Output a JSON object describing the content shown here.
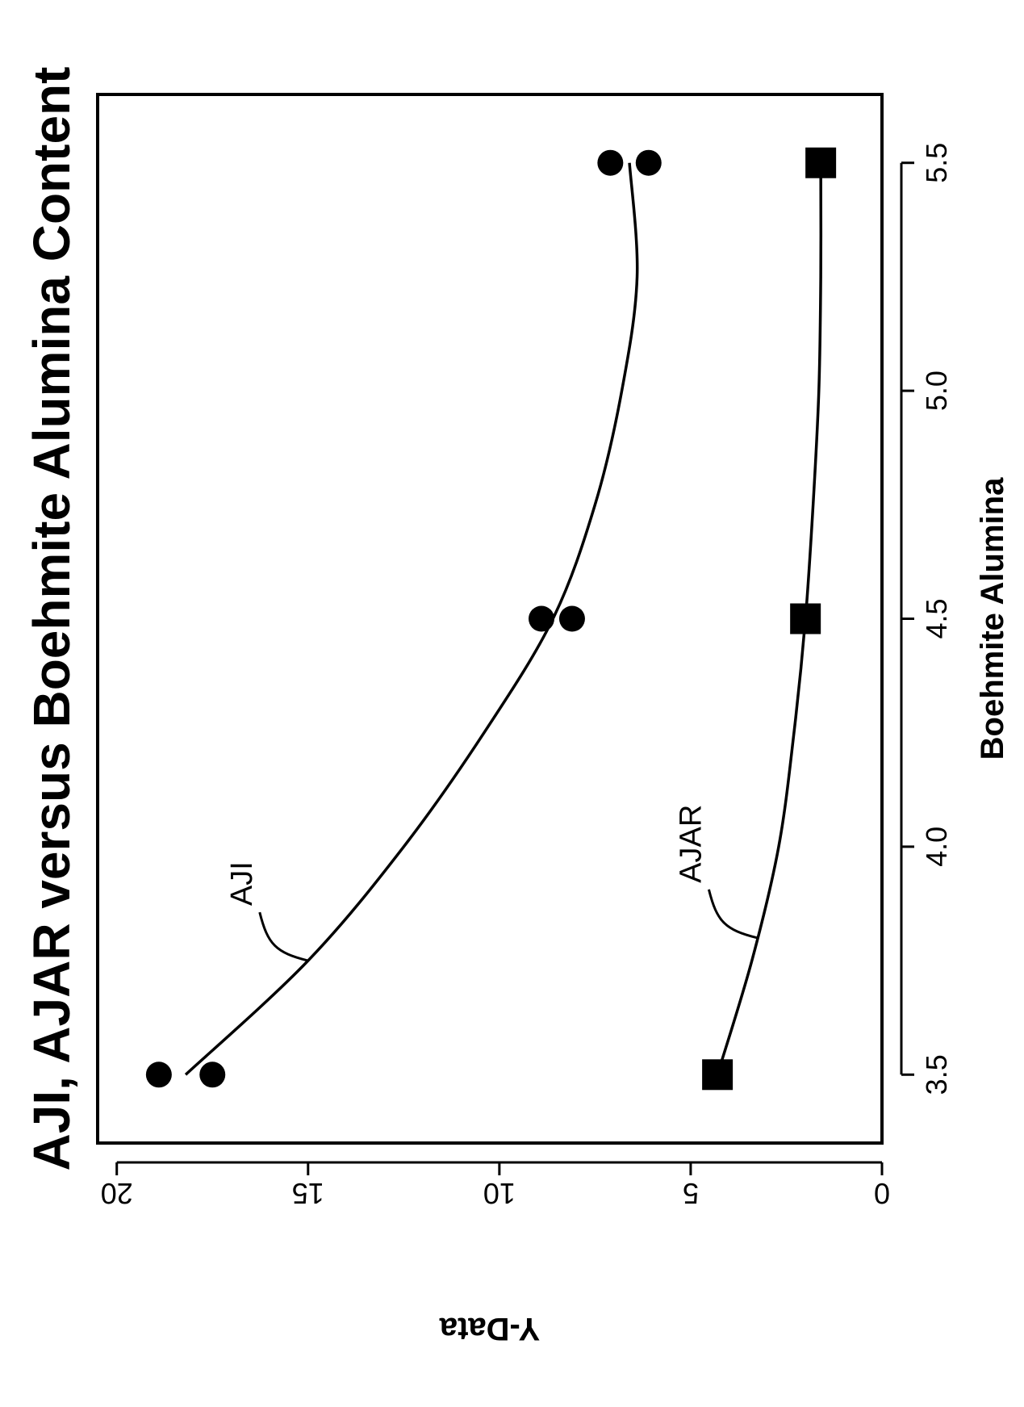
{
  "chart_data": {
    "type": "scatter",
    "title": "AJI, AJAR versus Boehmite Alumina Content",
    "xlabel": "Boehmite Alumina",
    "ylabel": "Y-Data",
    "xlim": [
      3.35,
      5.65
    ],
    "ylim": [
      0,
      20.5
    ],
    "x_ticks": [
      3.5,
      4.0,
      4.5,
      5.0,
      5.5
    ],
    "x_tick_labels": [
      "3.5",
      "4.0",
      "4.5",
      "5.0",
      "5.5"
    ],
    "y_ticks": [
      0,
      5,
      10,
      15,
      20
    ],
    "y_tick_labels": [
      "0",
      "5",
      "10",
      "15",
      "20"
    ],
    "grid": false,
    "orientation": "rotated 90 degrees counter-clockwise",
    "series": [
      {
        "name": "AJI",
        "marker": "circle",
        "points": [
          {
            "x": 3.5,
            "y": 18.9
          },
          {
            "x": 3.5,
            "y": 17.5
          },
          {
            "x": 4.5,
            "y": 8.9
          },
          {
            "x": 4.5,
            "y": 8.1
          },
          {
            "x": 5.5,
            "y": 7.1
          },
          {
            "x": 5.5,
            "y": 6.1
          }
        ],
        "fit": [
          [
            3.5,
            18.2
          ],
          [
            3.75,
            15.0
          ],
          [
            4.0,
            12.5
          ],
          [
            4.25,
            10.4
          ],
          [
            4.5,
            8.6
          ],
          [
            4.75,
            7.5
          ],
          [
            5.0,
            6.8
          ],
          [
            5.25,
            6.4
          ],
          [
            5.5,
            6.6
          ]
        ]
      },
      {
        "name": "AJAR",
        "marker": "square",
        "points": [
          {
            "x": 3.5,
            "y": 4.3
          },
          {
            "x": 4.5,
            "y": 2.0
          },
          {
            "x": 5.5,
            "y": 1.6
          }
        ],
        "fit": [
          [
            3.5,
            4.3
          ],
          [
            3.75,
            3.4
          ],
          [
            4.0,
            2.7
          ],
          [
            4.25,
            2.3
          ],
          [
            4.5,
            2.0
          ],
          [
            4.75,
            1.8
          ],
          [
            5.0,
            1.65
          ],
          [
            5.25,
            1.6
          ],
          [
            5.5,
            1.6
          ]
        ]
      }
    ],
    "annotations": [
      {
        "text": "AJI",
        "series": "AJI",
        "at_x": 3.75
      },
      {
        "text": "AJAR",
        "series": "AJAR",
        "at_x": 3.8
      }
    ]
  }
}
